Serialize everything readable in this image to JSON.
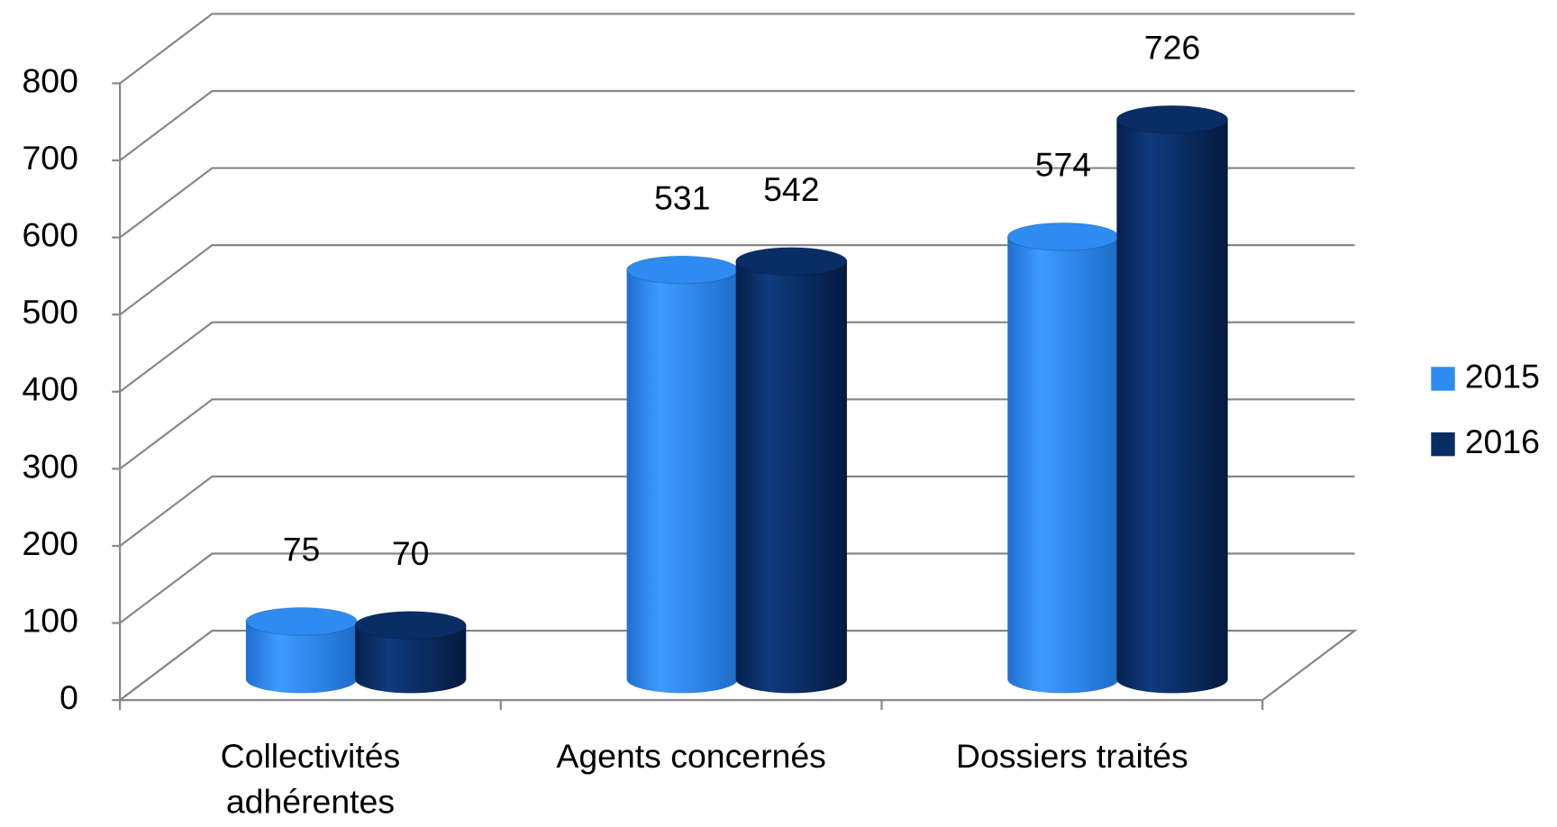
{
  "chart_data": {
    "type": "bar",
    "categories": [
      "Collectivités adhérentes",
      "Agents concernés",
      "Dossiers traités"
    ],
    "series": [
      {
        "name": "2015",
        "color": "#2e8bef",
        "values": [
          75,
          531,
          574
        ]
      },
      {
        "name": "2016",
        "color": "#0a2d66",
        "values": [
          70,
          542,
          726
        ]
      }
    ],
    "ylim": [
      0,
      800
    ],
    "yticks": [
      0,
      100,
      200,
      300,
      400,
      500,
      600,
      700,
      800
    ],
    "grid": true,
    "legend": "right"
  }
}
